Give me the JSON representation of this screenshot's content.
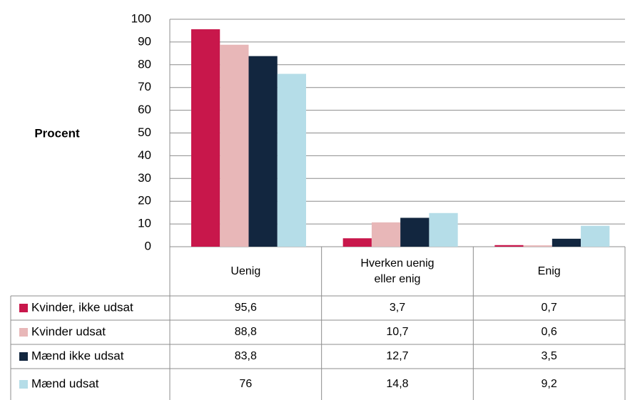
{
  "chart_data": {
    "type": "bar",
    "y_label": "Procent",
    "categories": [
      "Uenig",
      "Hverken uenig eller enig",
      "Enig"
    ],
    "series": [
      {
        "name": "Kvinder, ikke udsat",
        "color": "#c8174b",
        "values": [
          95.6,
          3.7,
          0.7
        ],
        "value_labels": [
          "95,6",
          "3,7",
          "0,7"
        ]
      },
      {
        "name": "Kvinder udsat",
        "color": "#e8b7b8",
        "values": [
          88.8,
          10.7,
          0.6
        ],
        "value_labels": [
          "88,8",
          "10,7",
          "0,6"
        ]
      },
      {
        "name": "Mænd ikke udsat",
        "color": "#12263f",
        "values": [
          83.8,
          12.7,
          3.5
        ],
        "value_labels": [
          "83,8",
          "12,7",
          "3,5"
        ]
      },
      {
        "name": "Mænd udsat",
        "color": "#b5dde8",
        "values": [
          76,
          14.8,
          9.2
        ],
        "value_labels": [
          "76",
          "14,8",
          "9,2"
        ]
      }
    ],
    "ylim": [
      0,
      100
    ],
    "yticks": [
      0,
      10,
      20,
      30,
      40,
      50,
      60,
      70,
      80,
      90,
      100
    ],
    "grid": true
  }
}
